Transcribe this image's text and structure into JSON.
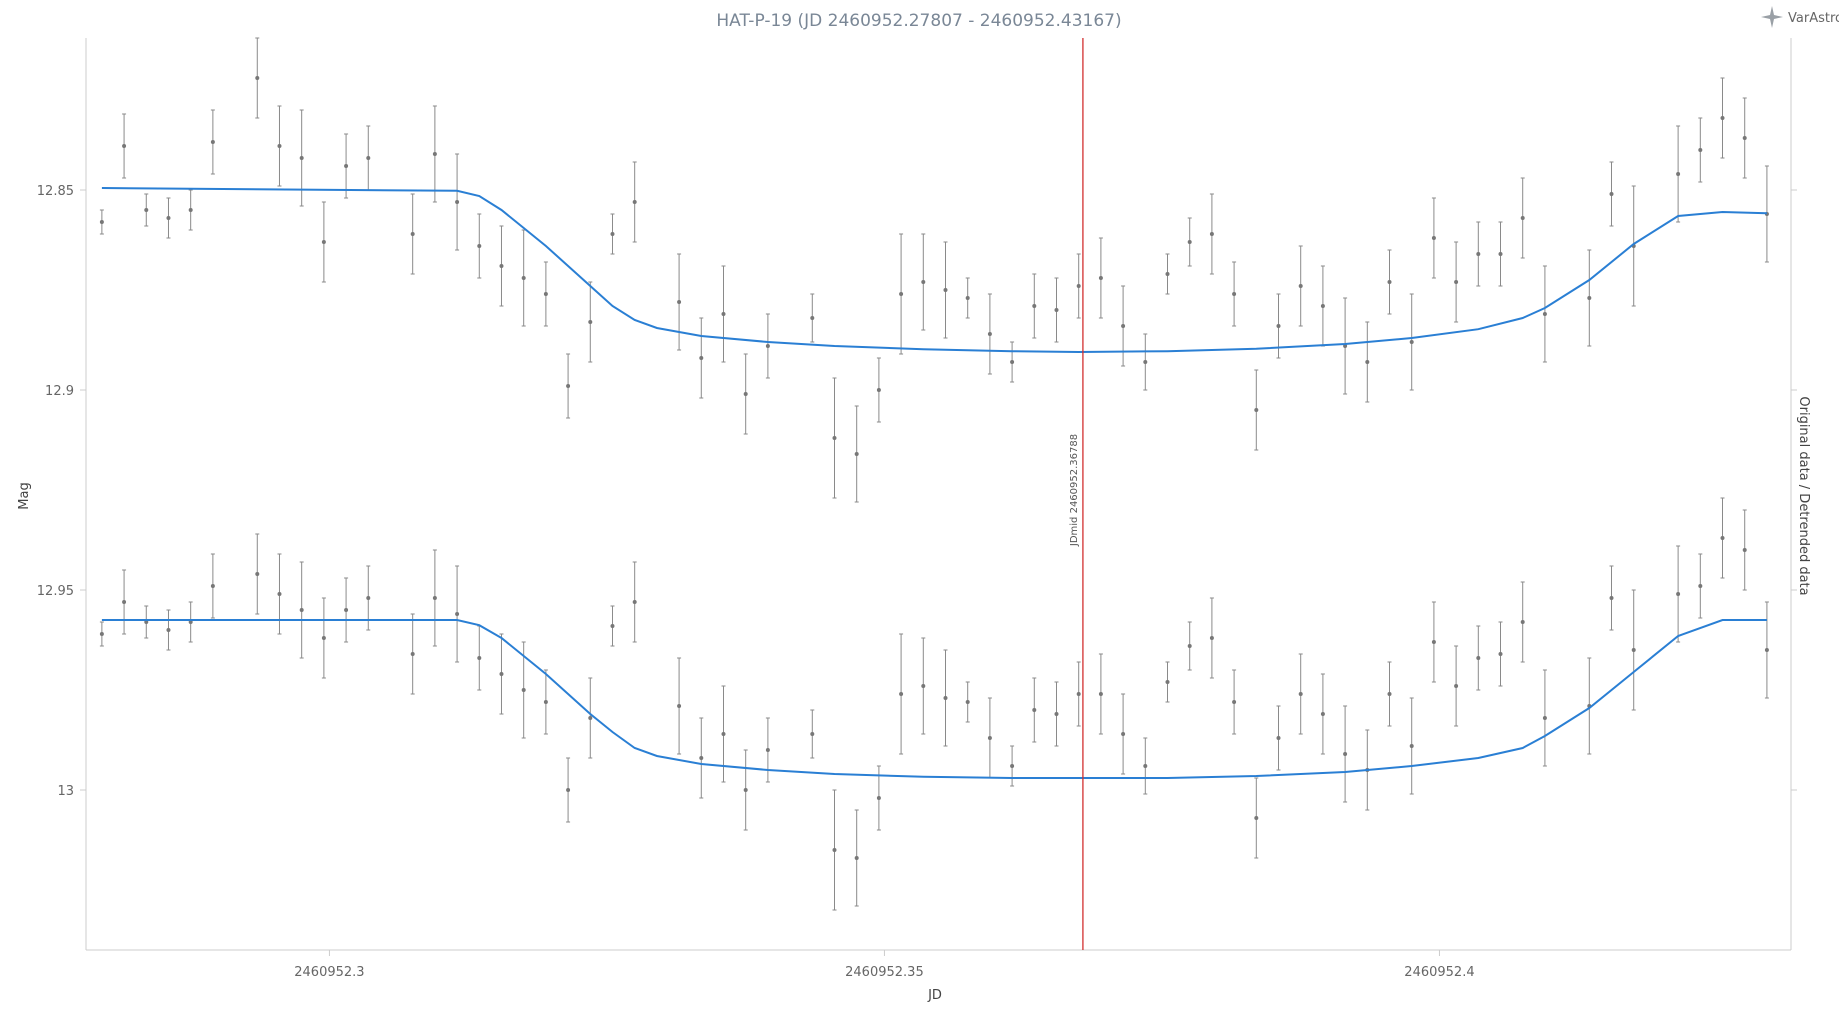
{
  "chart_data": {
    "type": "scatter",
    "title": "HAT-P-19 (JD 2460952.27807 - 2460952.43167)",
    "xlabel": "JD",
    "ylabel": "Mag",
    "ylabel_right": "Original data / Detrended data",
    "xlim": [
      2460952.27807,
      2460952.43167
    ],
    "ylim": [
      13.04,
      12.812
    ],
    "y_reversed": true,
    "x_ticks": [
      2460952.3,
      2460952.35,
      2460952.4
    ],
    "x_tick_labels": [
      "2460952.3",
      "2460952.35",
      "2460952.4"
    ],
    "y_ticks": [
      12.85,
      12.9,
      12.95,
      13
    ],
    "y_tick_labels": [
      "12.85",
      "12.9",
      "12.95",
      "13"
    ],
    "grid": false,
    "legend": "none",
    "plot_line": {
      "x": 2460952.36788,
      "label": "JDmid 2460952.36788",
      "color": "#d32f2f"
    },
    "brand_text": "VarAstro",
    "colors": {
      "points": "#777777",
      "model": "#2a7fd4",
      "errorbar": "#8a8a8a"
    },
    "series": [
      {
        "kind": "points",
        "x": [
          2460952.2795,
          2460952.2815,
          2460952.2835,
          2460952.2855,
          2460952.2875,
          2460952.2895,
          2460952.2935,
          2460952.2955,
          2460952.2975,
          2460952.2995,
          2460952.3015,
          2460952.3035,
          2460952.3075,
          2460952.3095,
          2460952.3115,
          2460952.3135,
          2460952.3155,
          2460952.3175,
          2460952.3195,
          2460952.3215,
          2460952.3235,
          2460952.3255,
          2460952.3275,
          2460952.3315,
          2460952.3335,
          2460952.3355,
          2460952.3375,
          2460952.3395,
          2460952.3435,
          2460952.3455,
          2460952.3475,
          2460952.3495,
          2460952.3515,
          2460952.3535,
          2460952.3555,
          2460952.3575,
          2460952.3595,
          2460952.3615,
          2460952.3635,
          2460952.3655,
          2460952.3675,
          2460952.3695,
          2460952.3715,
          2460952.3735,
          2460952.3755,
          2460952.3775,
          2460952.3795,
          2460952.3815,
          2460952.3835,
          2460952.3855,
          2460952.3875,
          2460952.3895,
          2460952.3915,
          2460952.3935,
          2460952.3955,
          2460952.3975,
          2460952.3995,
          2460952.4015,
          2460952.4035,
          2460952.4055,
          2460952.4075,
          2460952.4095,
          2460952.4135,
          2460952.4155,
          2460952.4175,
          2460952.4215,
          2460952.4235,
          2460952.4255,
          2460952.4275,
          2460952.4295
        ],
        "y": [
          12.858,
          12.839,
          12.855,
          12.857,
          12.855,
          12.838,
          12.822,
          12.839,
          12.842,
          12.863,
          12.844,
          12.842,
          12.861,
          12.841,
          12.853,
          12.864,
          12.869,
          12.872,
          12.876,
          12.899,
          12.883,
          12.861,
          12.853,
          12.878,
          12.892,
          12.881,
          12.901,
          12.889,
          12.882,
          12.912,
          12.916,
          12.9,
          12.876,
          12.873,
          12.875,
          12.877,
          12.886,
          12.893,
          12.879,
          12.88,
          12.874,
          12.872,
          12.884,
          12.893,
          12.871,
          12.863,
          12.861,
          12.876,
          12.905,
          12.884,
          12.874,
          12.879,
          12.889,
          12.893,
          12.873,
          12.888,
          12.862,
          12.873,
          12.866,
          12.866,
          12.857,
          12.881,
          12.877,
          12.851,
          12.864,
          12.846,
          12.84,
          12.832,
          12.837,
          12.856
        ],
        "errors": [
          0.003,
          0.008,
          0.004,
          0.005,
          0.005,
          0.008,
          0.01,
          0.01,
          0.012,
          0.01,
          0.008,
          0.008,
          0.01,
          0.012,
          0.012,
          0.008,
          0.01,
          0.012,
          0.008,
          0.008,
          0.01,
          0.005,
          0.01,
          0.012,
          0.01,
          0.012,
          0.01,
          0.008,
          0.006,
          0.015,
          0.012,
          0.008,
          0.015,
          0.012,
          0.012,
          0.005,
          0.01,
          0.005,
          0.008,
          0.008,
          0.008,
          0.01,
          0.01,
          0.007,
          0.005,
          0.006,
          0.01,
          0.008,
          0.01,
          0.008,
          0.01,
          0.01,
          0.012,
          0.01,
          0.008,
          0.012,
          0.01,
          0.01,
          0.008,
          0.008,
          0.01,
          0.012,
          0.012,
          0.008,
          0.015,
          0.012,
          0.008,
          0.01,
          0.01,
          0.012
        ]
      },
      {
        "kind": "line",
        "x": [
          2460952.2795,
          2460952.3115,
          2460952.3135,
          2460952.3155,
          2460952.3195,
          2460952.3235,
          2460952.3255,
          2460952.3275,
          2460952.3295,
          2460952.3335,
          2460952.3395,
          2460952.3455,
          2460952.3535,
          2460952.3615,
          2460952.3675,
          2460952.3755,
          2460952.3835,
          2460952.3915,
          2460952.3975,
          2460952.4035,
          2460952.4075,
          2460952.4095,
          2460952.4135,
          2460952.4175,
          2460952.4215,
          2460952.4255,
          2460952.4295
        ],
        "y": [
          12.8495,
          12.8502,
          12.8515,
          12.855,
          12.864,
          12.874,
          12.879,
          12.8825,
          12.8845,
          12.8865,
          12.888,
          12.889,
          12.8898,
          12.8903,
          12.8905,
          12.8903,
          12.8897,
          12.8885,
          12.887,
          12.8848,
          12.882,
          12.8795,
          12.8725,
          12.8635,
          12.8565,
          12.8555,
          12.8558
        ]
      },
      {
        "kind": "points",
        "x": [
          2460952.2795,
          2460952.2815,
          2460952.2835,
          2460952.2855,
          2460952.2875,
          2460952.2895,
          2460952.2935,
          2460952.2955,
          2460952.2975,
          2460952.2995,
          2460952.3015,
          2460952.3035,
          2460952.3075,
          2460952.3095,
          2460952.3115,
          2460952.3135,
          2460952.3155,
          2460952.3175,
          2460952.3195,
          2460952.3215,
          2460952.3235,
          2460952.3255,
          2460952.3275,
          2460952.3315,
          2460952.3335,
          2460952.3355,
          2460952.3375,
          2460952.3395,
          2460952.3435,
          2460952.3455,
          2460952.3475,
          2460952.3495,
          2460952.3515,
          2460952.3535,
          2460952.3555,
          2460952.3575,
          2460952.3595,
          2460952.3615,
          2460952.3635,
          2460952.3655,
          2460952.3675,
          2460952.3695,
          2460952.3715,
          2460952.3735,
          2460952.3755,
          2460952.3775,
          2460952.3795,
          2460952.3815,
          2460952.3835,
          2460952.3855,
          2460952.3875,
          2460952.3895,
          2460952.3915,
          2460952.3935,
          2460952.3955,
          2460952.3975,
          2460952.3995,
          2460952.4015,
          2460952.4035,
          2460952.4055,
          2460952.4075,
          2460952.4095,
          2460952.4135,
          2460952.4155,
          2460952.4175,
          2460952.4215,
          2460952.4235,
          2460952.4255,
          2460952.4275,
          2460952.4295
        ],
        "y": [
          12.961,
          12.953,
          12.958,
          12.96,
          12.958,
          12.949,
          12.946,
          12.951,
          12.955,
          12.962,
          12.955,
          12.952,
          12.966,
          12.952,
          12.956,
          12.967,
          12.971,
          12.975,
          12.978,
          13.0,
          12.982,
          12.959,
          12.953,
          12.979,
          12.992,
          12.986,
          13.0,
          12.99,
          12.986,
          13.015,
          13.017,
          13.002,
          12.976,
          12.974,
          12.977,
          12.978,
          12.987,
          12.994,
          12.98,
          12.981,
          12.976,
          12.976,
          12.986,
          12.994,
          12.973,
          12.964,
          12.962,
          12.978,
          13.007,
          12.987,
          12.976,
          12.981,
          12.991,
          12.995,
          12.976,
          12.989,
          12.963,
          12.974,
          12.967,
          12.966,
          12.958,
          12.982,
          12.979,
          12.952,
          12.965,
          12.951,
          12.949,
          12.937,
          12.94,
          12.965
        ],
        "errors": [
          0.003,
          0.008,
          0.004,
          0.005,
          0.005,
          0.008,
          0.01,
          0.01,
          0.012,
          0.01,
          0.008,
          0.008,
          0.01,
          0.012,
          0.012,
          0.008,
          0.01,
          0.012,
          0.008,
          0.008,
          0.01,
          0.005,
          0.01,
          0.012,
          0.01,
          0.012,
          0.01,
          0.008,
          0.006,
          0.015,
          0.012,
          0.008,
          0.015,
          0.012,
          0.012,
          0.005,
          0.01,
          0.005,
          0.008,
          0.008,
          0.008,
          0.01,
          0.01,
          0.007,
          0.005,
          0.006,
          0.01,
          0.008,
          0.01,
          0.008,
          0.01,
          0.01,
          0.012,
          0.01,
          0.008,
          0.012,
          0.01,
          0.01,
          0.008,
          0.008,
          0.01,
          0.012,
          0.012,
          0.008,
          0.015,
          0.012,
          0.008,
          0.01,
          0.01,
          0.012
        ]
      },
      {
        "kind": "line",
        "x": [
          2460952.2795,
          2460952.3115,
          2460952.3135,
          2460952.3155,
          2460952.3195,
          2460952.3235,
          2460952.3255,
          2460952.3275,
          2460952.3295,
          2460952.3335,
          2460952.3395,
          2460952.3455,
          2460952.3535,
          2460952.3615,
          2460952.3675,
          2460952.3755,
          2460952.3835,
          2460952.3915,
          2460952.3975,
          2460952.4035,
          2460952.4075,
          2460952.4095,
          2460952.4135,
          2460952.4175,
          2460952.4215,
          2460952.4255,
          2460952.4295
        ],
        "y": [
          12.9575,
          12.9575,
          12.9588,
          12.962,
          12.971,
          12.981,
          12.9855,
          12.9895,
          12.9915,
          12.9935,
          12.995,
          12.996,
          12.9967,
          12.997,
          12.997,
          12.997,
          12.9965,
          12.9955,
          12.994,
          12.992,
          12.9895,
          12.9865,
          12.9795,
          12.9705,
          12.9615,
          12.9575,
          12.9575
        ]
      }
    ]
  }
}
